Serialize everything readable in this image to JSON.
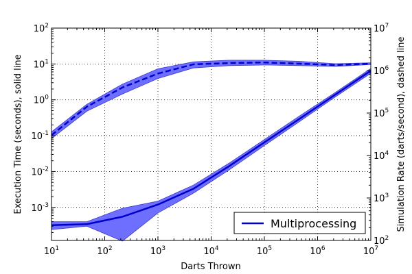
{
  "chart_data": {
    "type": "line",
    "title": "",
    "xlabel": "Darts Thrown",
    "ylabel_left": "Execution Time (seconds), solid line",
    "ylabel_right": "Simulation Rate (darts/second), dashed line",
    "x_scale": "log",
    "y_left_scale": "log",
    "y_right_scale": "log",
    "xlim": [
      10,
      10000000
    ],
    "ylim_left": [
      0.00012,
      100
    ],
    "ylim_right": [
      100,
      10000000
    ],
    "grid": true,
    "legend_position": "lower-right",
    "legend": [
      {
        "label": "Multiprocessing",
        "color": "#0000cc"
      }
    ],
    "x_ticks": [
      {
        "value": 10,
        "base": "10",
        "exp": "1"
      },
      {
        "value": 100,
        "base": "10",
        "exp": "2"
      },
      {
        "value": 1000,
        "base": "10",
        "exp": "3"
      },
      {
        "value": 10000,
        "base": "10",
        "exp": "4"
      },
      {
        "value": 100000,
        "base": "10",
        "exp": "5"
      },
      {
        "value": 1000000,
        "base": "10",
        "exp": "6"
      },
      {
        "value": 10000000,
        "base": "10",
        "exp": "7"
      }
    ],
    "y_left_ticks": [
      {
        "value": 0.001,
        "base": "10",
        "exp": "-3"
      },
      {
        "value": 0.01,
        "base": "10",
        "exp": "-2"
      },
      {
        "value": 0.1,
        "base": "10",
        "exp": "-1"
      },
      {
        "value": 1,
        "base": "10",
        "exp": "0"
      },
      {
        "value": 10,
        "base": "10",
        "exp": "1"
      },
      {
        "value": 100,
        "base": "10",
        "exp": "2"
      }
    ],
    "y_right_ticks": [
      {
        "value": 100,
        "base": "10",
        "exp": "2"
      },
      {
        "value": 1000,
        "base": "10",
        "exp": "3"
      },
      {
        "value": 10000,
        "base": "10",
        "exp": "4"
      },
      {
        "value": 100000,
        "base": "10",
        "exp": "5"
      },
      {
        "value": 1000000,
        "base": "10",
        "exp": "6"
      },
      {
        "value": 10000000,
        "base": "10",
        "exp": "7"
      }
    ],
    "series": [
      {
        "name": "Multiprocessing",
        "axis": "left",
        "style": "solid",
        "x": [
          10,
          46,
          215,
          1000,
          4640,
          21500,
          100000,
          464000,
          2150000,
          10000000
        ],
        "y": [
          0.00032,
          0.00034,
          0.00055,
          0.0012,
          0.0033,
          0.014,
          0.065,
          0.3,
          1.4,
          6.5
        ],
        "band_low": [
          0.00024,
          0.0003,
          0.000115,
          0.0007,
          0.0025,
          0.011,
          0.053,
          0.25,
          1.2,
          5.5
        ],
        "band_high": [
          0.0004,
          0.0004,
          0.00095,
          0.0015,
          0.0042,
          0.017,
          0.078,
          0.36,
          1.6,
          7.5
        ]
      },
      {
        "name": "Multiprocessing",
        "axis": "right",
        "style": "dashed",
        "x": [
          10,
          46,
          215,
          1000,
          4640,
          21500,
          100000,
          464000,
          2150000,
          10000000
        ],
        "y": [
          30000,
          140000,
          400000,
          850000,
          1400000,
          1500000,
          1550000,
          1450000,
          1350000,
          1450000
        ],
        "band_low": [
          25000,
          110000,
          280000,
          650000,
          1150000,
          1300000,
          1350000,
          1300000,
          1250000,
          1380000
        ],
        "band_high": [
          36000,
          160000,
          480000,
          1100000,
          1600000,
          1750000,
          1750000,
          1650000,
          1450000,
          1520000
        ]
      }
    ]
  },
  "colors": {
    "line": "#0000cc",
    "band_fill": "#6e6eff",
    "band_edge": "#3c3cc8"
  }
}
